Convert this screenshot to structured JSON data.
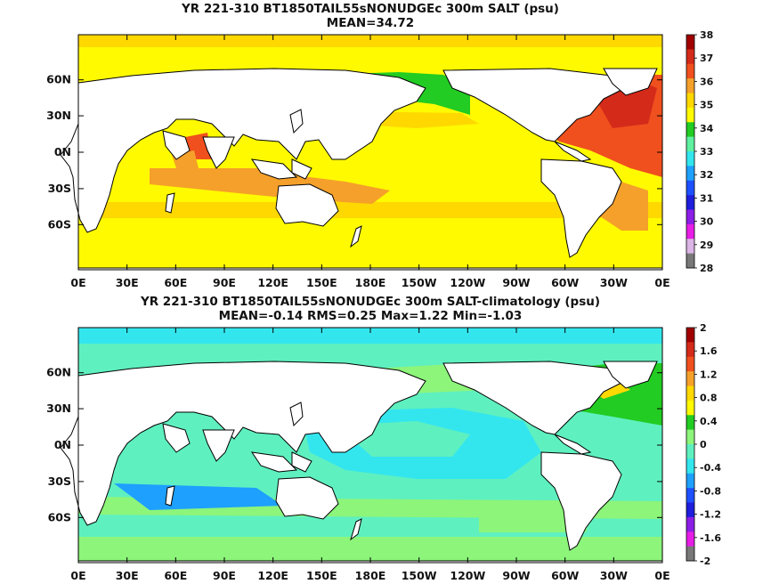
{
  "top_map": {
    "title_line1": "YR 221-310 BT1850TAIL55sNONUDGEc 300m SALT (psu)",
    "title_line2": "MEAN=34.72",
    "lat_labels": [
      "60N",
      "30N",
      "0N",
      "30S",
      "60S"
    ],
    "lon_labels": [
      "0E",
      "30E",
      "60E",
      "90E",
      "120E",
      "150E",
      "180E",
      "150W",
      "120W",
      "90W",
      "60W",
      "30W",
      "0E"
    ],
    "colorbar_labels": [
      "38",
      "37",
      "36",
      "35",
      "34",
      "33",
      "32",
      "31",
      "30",
      "29",
      "28"
    ],
    "colorbar_colors": [
      "#a00000",
      "#d42a1a",
      "#f0501e",
      "#f5a02a",
      "#ffd800",
      "#fffa00",
      "#22cc22",
      "#5ff0a0",
      "#33e6ee",
      "#1ea0ff",
      "#1e50ff",
      "#1e1edc",
      "#8c1ee6",
      "#e61ee6",
      "#dcb4e6",
      "#787878"
    ]
  },
  "bottom_map": {
    "title_line1": "YR 221-310 BT1850TAIL55sNONUDGEc 300m SALT-climatology (psu)",
    "title_line2": "MEAN=-0.14   RMS=0.25   Max=1.22   Min=-1.03",
    "lat_labels": [
      "60N",
      "30N",
      "0N",
      "30S",
      "60S"
    ],
    "lon_labels": [
      "0E",
      "30E",
      "60E",
      "90E",
      "120E",
      "150E",
      "180E",
      "150W",
      "120W",
      "90W",
      "60W",
      "30W",
      "0E"
    ],
    "colorbar_labels": [
      "2",
      "1.6",
      "1.2",
      "0.8",
      "0.4",
      "0",
      "-0.4",
      "-0.8",
      "-1.2",
      "-1.6",
      "-2"
    ],
    "colorbar_colors": [
      "#a00000",
      "#d42a1a",
      "#f0501e",
      "#f5a02a",
      "#ffd800",
      "#fffa00",
      "#22cc22",
      "#8cf57a",
      "#5ff0c0",
      "#33e6ee",
      "#1ea0ff",
      "#1e50ff",
      "#1e1edc",
      "#8c1ee6",
      "#e61ee6",
      "#787878"
    ]
  }
}
